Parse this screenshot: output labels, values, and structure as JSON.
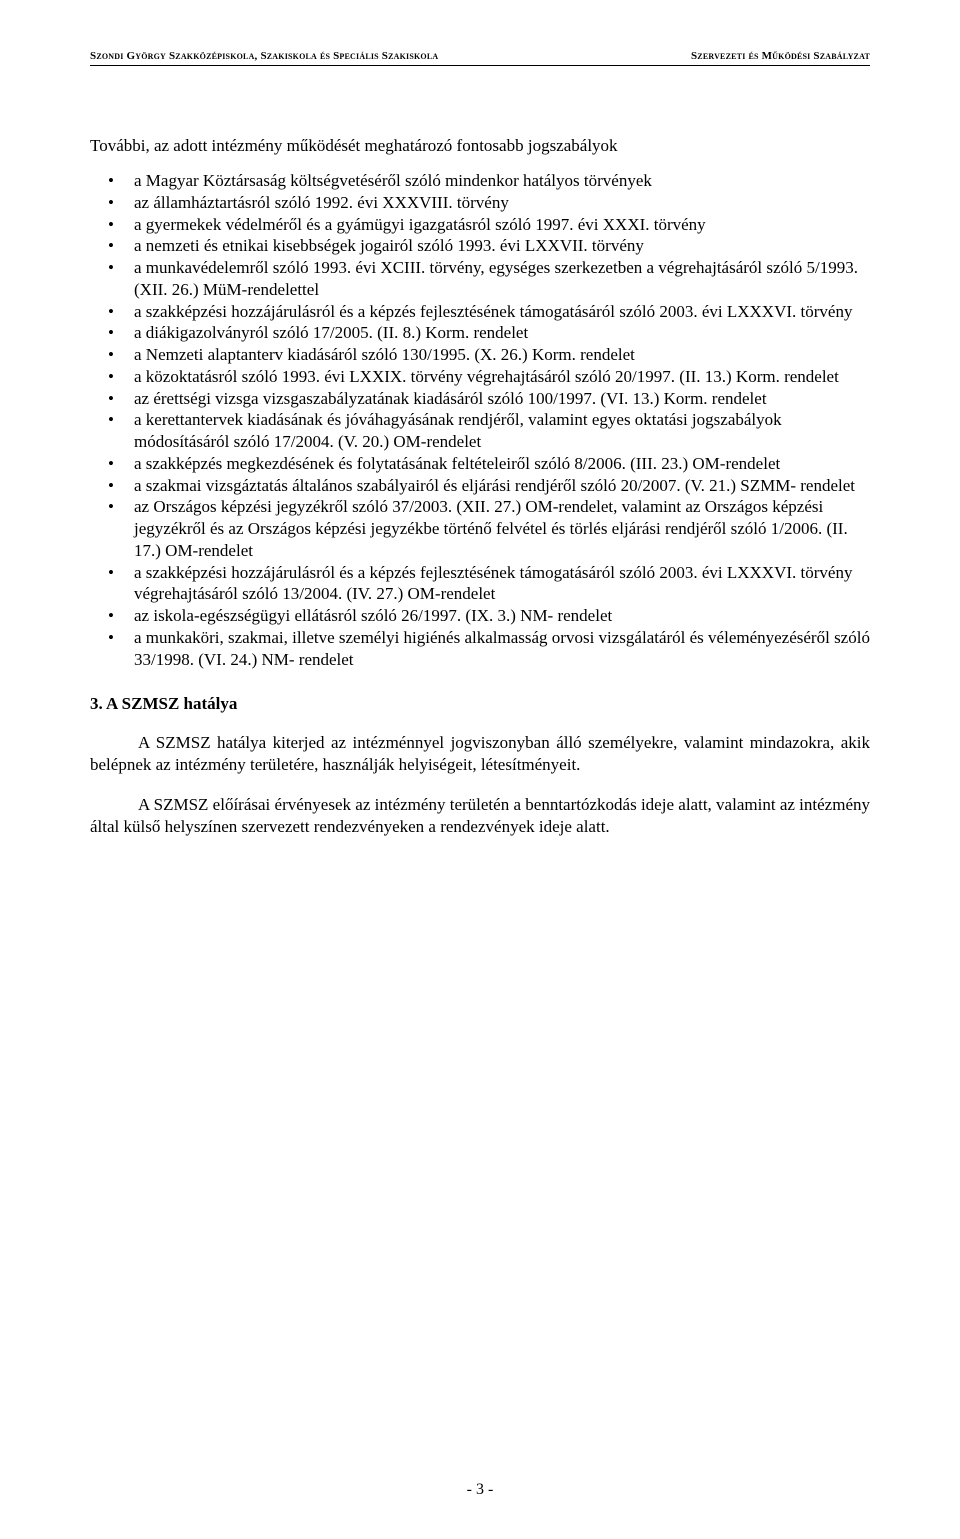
{
  "header": {
    "left": "Szondi György Szakközépiskola, Szakiskola és Speciális Szakiskola",
    "right": "Szervezeti és Működési Szabályzat"
  },
  "intro": "További, az adott intézmény működését meghatározó fontosabb jogszabályok",
  "bullets": [
    "a Magyar Köztársaság költségvetéséről szóló mindenkor hatályos törvények",
    "az államháztartásról szóló 1992. évi XXXVIII. törvény",
    "a gyermekek védelméről és a gyámügyi igazgatásról szóló 1997. évi XXXI. törvény",
    "a nemzeti és etnikai kisebbségek jogairól szóló 1993. évi LXXVII. törvény",
    "a munkavédelemről szóló 1993. évi XCIII. törvény, egységes szerkezetben a végrehajtásáról szóló 5/1993. (XII. 26.) MüM-rendelettel",
    "a szakképzési hozzájárulásról és a képzés fejlesztésének támogatásáról szóló 2003. évi LXXXVI. törvény",
    "a diákigazolványról szóló 17/2005. (II. 8.) Korm. rendelet",
    "a Nemzeti alaptanterv kiadásáról szóló 130/1995. (X. 26.) Korm. rendelet",
    "a közoktatásról szóló 1993. évi LXXIX. törvény végrehajtásáról szóló 20/1997. (II. 13.) Korm. rendelet",
    "az érettségi vizsga vizsgaszabályzatának kiadásáról szóló 100/1997. (VI. 13.) Korm. rendelet",
    "a kerettantervek kiadásának és jóváhagyásának rendjéről, valamint egyes oktatási jogszabályok módosításáról szóló 17/2004. (V. 20.) OM-rendelet",
    "a szakképzés megkezdésének és folytatásának feltételeiről szóló 8/2006. (III. 23.) OM-rendelet",
    "a szakmai vizsgáztatás általános szabályairól és eljárási rendjéről szóló 20/2007. (V. 21.) SZMM- rendelet",
    "az Országos képzési jegyzékről szóló 37/2003. (XII. 27.) OM-rendelet, valamint az Országos képzési jegyzékről és az Országos képzési jegyzékbe történő felvétel és törlés eljárási rendjéről szóló 1/2006. (II. 17.) OM-rendelet",
    "a szakképzési hozzájárulásról és a képzés fejlesztésének támogatásáról szóló 2003. évi LXXXVI. törvény végrehajtásáról szóló 13/2004. (IV. 27.) OM-rendelet",
    "az iskola-egészségügyi ellátásról szóló 26/1997. (IX. 3.) NM- rendelet",
    "a munkaköri, szakmai, illetve személyi higiénés alkalmasság orvosi vizsgálatáról és véleményezéséről szóló 33/1998. (VI. 24.) NM- rendelet"
  ],
  "section_title": "3.  A SZMSZ hatálya",
  "para1": "A SZMSZ hatálya kiterjed az intézménnyel jogviszonyban álló személyekre, valamint mindazokra, akik belépnek az intézmény területére, használják helyiségeit, létesítményeit.",
  "para2": "A SZMSZ előírásai érvényesek az intézmény területén a benntartózkodás ideje alatt, valamint az intézmény által külső helyszínen szervezett rendezvényeken a rendezvények ideje alatt.",
  "page_number": "- 3 -"
}
